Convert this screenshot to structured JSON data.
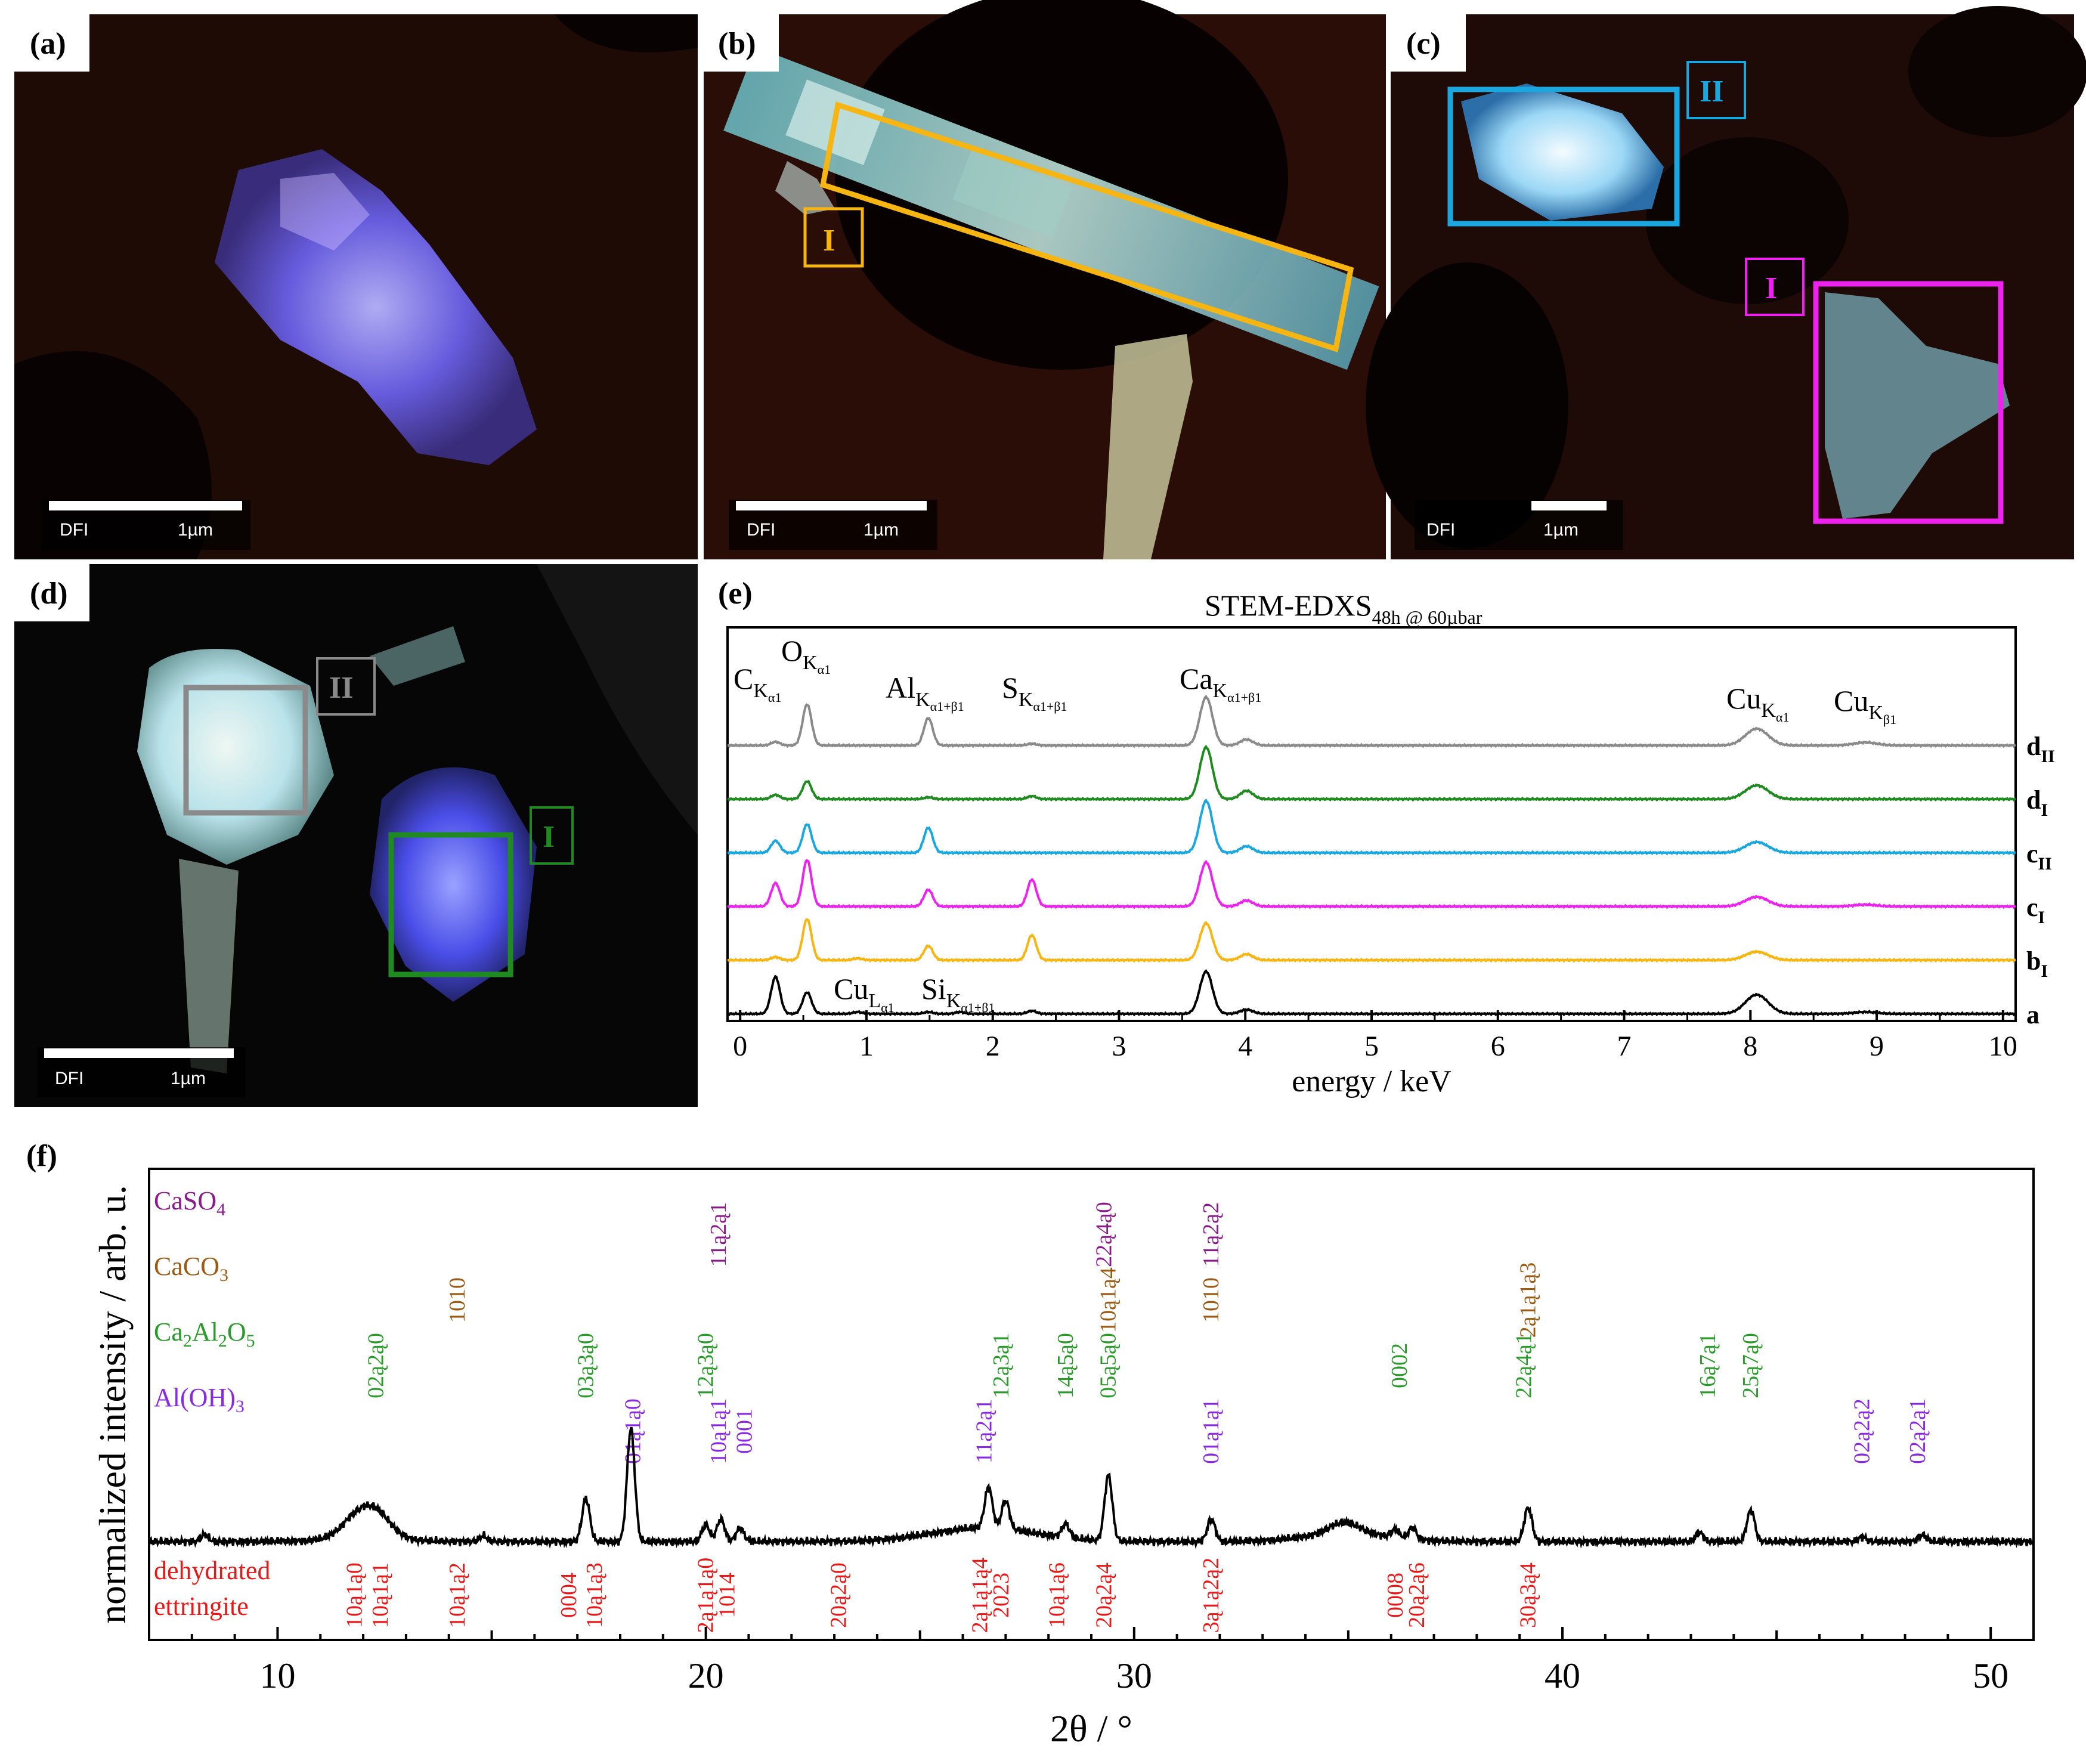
{
  "panels": {
    "a": {
      "label": "(a)",
      "scalebar_mode": "DFI",
      "scalebar_length": "1µm"
    },
    "b": {
      "label": "(b)",
      "scalebar_mode": "DFI",
      "scalebar_length": "1µm",
      "roi_label": "I"
    },
    "c": {
      "label": "(c)",
      "scalebar_mode": "DFI",
      "scalebar_length": "1µm",
      "roi_labels": [
        "II",
        "I"
      ]
    },
    "d": {
      "label": "(d)",
      "scalebar_mode": "DFI",
      "scalebar_length": "1µm",
      "roi_labels": [
        "II",
        "I"
      ]
    },
    "e": {
      "label": "(e)"
    },
    "f": {
      "label": "(f)"
    }
  },
  "colors": {
    "a": "#000000",
    "bI": "#f7b512",
    "cI": "#ee22ee",
    "cII": "#1aa7e0",
    "dI": "#1f8a1f",
    "dII": "#8a8a8a",
    "CaSO4": "#8a1c8a",
    "CaCO3": "#9a5a14",
    "Ca2Al2O5": "#2a9a2a",
    "AlOH3": "#8a2ae0",
    "ettringite": "#e81818"
  },
  "chart_data": [
    {
      "type": "line",
      "title": "STEM-EDXS",
      "title_subscript": "48h @ 60µbar",
      "xlabel": "energy / keV",
      "xlim": [
        -0.1,
        10.1
      ],
      "xticks": [
        0,
        1,
        2,
        3,
        4,
        5,
        6,
        7,
        8,
        9,
        10
      ],
      "peak_labels": [
        {
          "el": "C",
          "sub": "K",
          "subsub": "α1",
          "x": 0.28
        },
        {
          "el": "O",
          "sub": "K",
          "subsub": "α1",
          "x": 0.53
        },
        {
          "el": "Al",
          "sub": "K",
          "subsub": "α1+β1",
          "x": 1.49
        },
        {
          "el": "S",
          "sub": "K",
          "subsub": "α1+β1",
          "x": 2.31
        },
        {
          "el": "Ca",
          "sub": "K",
          "subsub": "α1+β1",
          "x": 3.69
        },
        {
          "el": "Cu",
          "sub": "K",
          "subsub": "α1",
          "x": 8.05
        },
        {
          "el": "Cu",
          "sub": "K",
          "subsub": "β1",
          "x": 8.91
        },
        {
          "el": "Cu",
          "sub": "L",
          "subsub": "α1",
          "x": 0.93
        },
        {
          "el": "Si",
          "sub": "K",
          "subsub": "α1+β1",
          "x": 1.74
        }
      ],
      "series": [
        {
          "name": "a",
          "label_main": "a",
          "label_sub": "",
          "color": "#000000",
          "peaks": [
            [
              0.28,
              0.62
            ],
            [
              0.53,
              0.36
            ],
            [
              0.93,
              0.03
            ],
            [
              1.49,
              0.03
            ],
            [
              1.74,
              0.03
            ],
            [
              2.31,
              0.05
            ],
            [
              3.69,
              0.71
            ],
            [
              4.01,
              0.07
            ],
            [
              8.05,
              0.32
            ],
            [
              8.91,
              0.03
            ]
          ]
        },
        {
          "name": "bI",
          "label_main": "b",
          "label_sub": "I",
          "color": "#f7b512",
          "peaks": [
            [
              0.28,
              0.05
            ],
            [
              0.53,
              0.69
            ],
            [
              0.93,
              0.03
            ],
            [
              1.49,
              0.24
            ],
            [
              2.31,
              0.42
            ],
            [
              3.69,
              0.62
            ],
            [
              4.01,
              0.1
            ],
            [
              8.05,
              0.14
            ]
          ]
        },
        {
          "name": "cI",
          "label_main": "c",
          "label_sub": "I",
          "color": "#ee22ee",
          "peaks": [
            [
              0.28,
              0.39
            ],
            [
              0.53,
              0.78
            ],
            [
              1.49,
              0.28
            ],
            [
              2.31,
              0.45
            ],
            [
              3.69,
              0.74
            ],
            [
              4.01,
              0.1
            ],
            [
              8.05,
              0.16
            ],
            [
              8.91,
              0.03
            ]
          ]
        },
        {
          "name": "cII",
          "label_main": "c",
          "label_sub": "II",
          "color": "#1aa7e0",
          "peaks": [
            [
              0.28,
              0.2
            ],
            [
              0.53,
              0.48
            ],
            [
              1.49,
              0.42
            ],
            [
              3.69,
              0.87
            ],
            [
              4.01,
              0.11
            ],
            [
              8.05,
              0.18
            ]
          ]
        },
        {
          "name": "dI",
          "label_main": "d",
          "label_sub": "I",
          "color": "#1f8a1f",
          "peaks": [
            [
              0.28,
              0.07
            ],
            [
              0.53,
              0.3
            ],
            [
              1.49,
              0.03
            ],
            [
              2.31,
              0.05
            ],
            [
              3.69,
              0.87
            ],
            [
              4.01,
              0.14
            ],
            [
              8.05,
              0.23
            ]
          ]
        },
        {
          "name": "dII",
          "label_main": "d",
          "label_sub": "II",
          "color": "#8a8a8a",
          "peaks": [
            [
              0.28,
              0.06
            ],
            [
              0.53,
              0.69
            ],
            [
              1.49,
              0.46
            ],
            [
              2.31,
              0.03
            ],
            [
              3.69,
              0.81
            ],
            [
              4.01,
              0.1
            ],
            [
              8.05,
              0.28
            ],
            [
              8.91,
              0.05
            ]
          ]
        }
      ]
    },
    {
      "type": "line",
      "xlabel": "2θ / °",
      "ylabel": "normalized intensity / arb. u.",
      "xlim": [
        7,
        51
      ],
      "xticks": [
        10,
        20,
        30,
        40,
        50
      ],
      "baseline_peaks": [
        [
          8.3,
          0.06
        ],
        [
          11.8,
          0.16
        ],
        [
          12.3,
          0.22
        ],
        [
          14.8,
          0.05
        ],
        [
          17.2,
          0.38
        ],
        [
          18.25,
          1.0
        ],
        [
          20.0,
          0.15
        ],
        [
          20.35,
          0.2
        ],
        [
          20.8,
          0.12
        ],
        [
          26.6,
          0.36
        ],
        [
          27.0,
          0.25
        ],
        [
          28.4,
          0.12
        ],
        [
          29.4,
          0.58
        ],
        [
          31.8,
          0.2
        ],
        [
          34.9,
          0.1
        ],
        [
          36.1,
          0.07
        ],
        [
          36.5,
          0.1
        ],
        [
          39.2,
          0.3
        ],
        [
          43.2,
          0.08
        ],
        [
          44.4,
          0.28
        ],
        [
          47.0,
          0.04
        ],
        [
          48.4,
          0.06
        ]
      ],
      "reference_phases": [
        {
          "name": "CaSO4",
          "label": "CaSO",
          "sub": "4",
          "color": "#8a1c8a",
          "reflections": [
            {
              "x": 20.3,
              "hkl": "11ą2ą1"
            },
            {
              "x": 29.3,
              "hkl": "22ą4ą0"
            },
            {
              "x": 31.8,
              "hkl": "11ą2ą2"
            }
          ]
        },
        {
          "name": "CaCO3",
          "label": "CaCO",
          "sub": "3",
          "color": "#9a5a14",
          "reflections": [
            {
              "x": 14.2,
              "hkl": "1010"
            },
            {
              "x": 29.4,
              "hkl": "10ą1ą4"
            },
            {
              "x": 31.8,
              "hkl": "1010"
            },
            {
              "x": 39.2,
              "hkl": "2ą1ą1ą3"
            }
          ]
        },
        {
          "name": "Ca2Al2O5",
          "label": "Ca",
          "sub": "2",
          "label2": "Al",
          "sub2": "2",
          "label3": "O",
          "sub3": "5",
          "color": "#2a9a2a",
          "reflections": [
            {
              "x": 12.3,
              "hkl": "02ą2ą0"
            },
            {
              "x": 17.2,
              "hkl": "03ą3ą0"
            },
            {
              "x": 20.0,
              "hkl": "12ą3ą0"
            },
            {
              "x": 26.9,
              "hkl": "12ą3ą1"
            },
            {
              "x": 28.4,
              "hkl": "14ą5ą0"
            },
            {
              "x": 29.4,
              "hkl": "05ą5ą0"
            },
            {
              "x": 36.2,
              "hkl": "0002"
            },
            {
              "x": 39.1,
              "hkl": "22ą4ą1"
            },
            {
              "x": 43.4,
              "hkl": "16ą7ą1"
            },
            {
              "x": 44.4,
              "hkl": "25ą7ą0"
            }
          ]
        },
        {
          "name": "AlOH3",
          "label": "Al(OH)",
          "sub": "3",
          "color": "#8a2ae0",
          "reflections": [
            {
              "x": 18.3,
              "hkl": "01ą1ą0"
            },
            {
              "x": 20.3,
              "hkl": "10ą1ą1"
            },
            {
              "x": 20.9,
              "hkl": "0001"
            },
            {
              "x": 26.5,
              "hkl": "11ą2ą1"
            },
            {
              "x": 31.8,
              "hkl": "01ą1ą1"
            },
            {
              "x": 47.0,
              "hkl": "02ą2ą2"
            },
            {
              "x": 48.3,
              "hkl": "02ą2ą1"
            }
          ]
        }
      ],
      "ettringite": {
        "label_line1": "dehydrated",
        "label_line2": "ettringite",
        "color": "#e81818",
        "reflections": [
          {
            "x": 11.8,
            "hkl": "10ą1ą0"
          },
          {
            "x": 12.4,
            "hkl": "10ą1ą1"
          },
          {
            "x": 14.2,
            "hkl": "10ą1ą2"
          },
          {
            "x": 16.8,
            "hkl": "0004"
          },
          {
            "x": 17.4,
            "hkl": "10ą1ą3"
          },
          {
            "x": 20.0,
            "hkl": "2ą1ą1ą0"
          },
          {
            "x": 20.5,
            "hkl": "1014"
          },
          {
            "x": 23.1,
            "hkl": "20ą2ą0"
          },
          {
            "x": 26.4,
            "hkl": "2ą1ą1ą4"
          },
          {
            "x": 26.9,
            "hkl": "2023"
          },
          {
            "x": 28.2,
            "hkl": "10ą1ą6"
          },
          {
            "x": 29.3,
            "hkl": "20ą2ą4"
          },
          {
            "x": 31.8,
            "hkl": "3ą1ą2ą2"
          },
          {
            "x": 36.1,
            "hkl": "0008"
          },
          {
            "x": 36.6,
            "hkl": "20ą2ą6"
          },
          {
            "x": 39.2,
            "hkl": "30ą3ą4"
          }
        ]
      }
    }
  ]
}
